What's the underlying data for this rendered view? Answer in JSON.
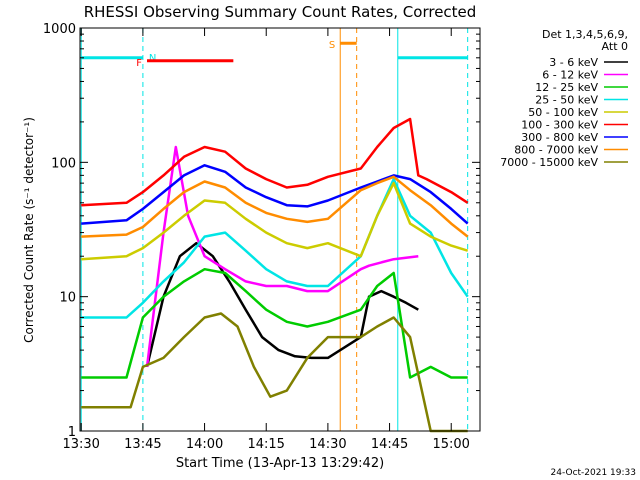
{
  "chart_data": {
    "type": "line",
    "title": "RHESSI Observing Summary Count Rates, Corrected",
    "xlabel": "Start Time (13-Apr-13 13:29:42)",
    "ylabel": "Corrected Count Rate (s⁻¹ detector⁻¹)",
    "yscale": "log",
    "ylim": [
      1,
      1000
    ],
    "xlim": [
      "13:30",
      "15:07"
    ],
    "x_ticks": [
      "13:30",
      "13:45",
      "14:00",
      "14:15",
      "14:30",
      "14:45",
      "15:00"
    ],
    "y_ticks": [
      "1",
      "10",
      "100",
      "1000"
    ],
    "legend_placement": "right",
    "legend_header": [
      "Det 1,3,4,5,6,9,",
      "Att 0"
    ],
    "series": [
      {
        "name": "3 - 6 keV",
        "color": "#000000",
        "x": [
          "13:46",
          "13:50",
          "13:54",
          "13:58",
          "14:02",
          "14:06",
          "14:10",
          "14:14",
          "14:18",
          "14:22",
          "14:26",
          "14:30",
          "14:38",
          "14:40",
          "14:43",
          "14:46",
          "14:49",
          "14:52"
        ],
        "values": [
          3,
          10,
          20,
          25,
          20,
          13,
          8,
          5,
          4,
          3.6,
          3.5,
          3.5,
          5,
          10,
          11,
          10,
          9,
          8
        ]
      },
      {
        "name": "6 - 12 keV",
        "color": "#ff00ff",
        "x": [
          "13:46",
          "13:50",
          "13:53",
          "13:56",
          "14:00",
          "14:05",
          "14:10",
          "14:15",
          "14:20",
          "14:25",
          "14:30",
          "14:38",
          "14:40",
          "14:43",
          "14:46",
          "14:52"
        ],
        "values": [
          3,
          30,
          130,
          40,
          20,
          16,
          13,
          12,
          12,
          11,
          11,
          16,
          17,
          18,
          19,
          20
        ]
      },
      {
        "name": "12 - 25 keV",
        "color": "#00cc00",
        "x": [
          "13:30",
          "13:41",
          "13:45",
          "13:50",
          "13:55",
          "14:00",
          "14:05",
          "14:10",
          "14:15",
          "14:20",
          "14:25",
          "14:30",
          "14:38",
          "14:42",
          "14:46",
          "14:50",
          "14:55",
          "15:00",
          "15:04"
        ],
        "values": [
          2.5,
          2.5,
          7,
          10,
          13,
          16,
          15,
          11,
          8,
          6.5,
          6,
          6.5,
          8,
          12,
          15,
          2.5,
          3,
          2.5,
          2.5
        ]
      },
      {
        "name": "25 - 50 keV",
        "color": "#00e5e5",
        "x": [
          "13:30",
          "13:41",
          "13:45",
          "13:50",
          "13:55",
          "14:00",
          "14:05",
          "14:10",
          "14:15",
          "14:20",
          "14:25",
          "14:30",
          "14:38",
          "14:42",
          "14:46",
          "14:50",
          "14:55",
          "15:00",
          "15:04"
        ],
        "values": [
          7,
          7,
          9,
          13,
          18,
          28,
          30,
          22,
          16,
          13,
          12,
          12,
          20,
          40,
          75,
          40,
          30,
          15,
          10
        ]
      },
      {
        "name": "50 - 100 keV",
        "color": "#cccc00",
        "x": [
          "13:30",
          "13:41",
          "13:45",
          "13:50",
          "13:55",
          "14:00",
          "14:05",
          "14:10",
          "14:15",
          "14:20",
          "14:25",
          "14:30",
          "14:38",
          "14:42",
          "14:46",
          "14:50",
          "14:55",
          "15:00",
          "15:04"
        ],
        "values": [
          19,
          20,
          23,
          30,
          40,
          52,
          50,
          38,
          30,
          25,
          23,
          25,
          20,
          40,
          70,
          35,
          28,
          24,
          22
        ]
      },
      {
        "name": "100 - 300 keV",
        "color": "#ff0000",
        "x": [
          "13:30",
          "13:41",
          "13:45",
          "13:50",
          "13:55",
          "14:00",
          "14:05",
          "14:10",
          "14:15",
          "14:20",
          "14:25",
          "14:30",
          "14:38",
          "14:42",
          "14:46",
          "14:50",
          "14:52",
          "14:54",
          "15:00",
          "15:04"
        ],
        "values": [
          48,
          50,
          60,
          80,
          110,
          130,
          120,
          90,
          75,
          65,
          68,
          78,
          90,
          130,
          180,
          210,
          80,
          75,
          60,
          50
        ]
      },
      {
        "name": "300 - 800 keV",
        "color": "#0000ff",
        "x": [
          "13:30",
          "13:41",
          "13:45",
          "13:50",
          "13:55",
          "14:00",
          "14:05",
          "14:10",
          "14:15",
          "14:20",
          "14:25",
          "14:30",
          "14:38",
          "14:42",
          "14:46",
          "14:50",
          "14:55",
          "15:00",
          "15:04"
        ],
        "values": [
          35,
          37,
          45,
          60,
          80,
          95,
          85,
          65,
          55,
          48,
          47,
          52,
          65,
          72,
          80,
          75,
          60,
          45,
          35
        ]
      },
      {
        "name": "800 - 7000 keV",
        "color": "#ff8c00",
        "x": [
          "13:30",
          "13:41",
          "13:45",
          "13:50",
          "13:55",
          "14:00",
          "14:05",
          "14:10",
          "14:15",
          "14:20",
          "14:25",
          "14:30",
          "14:38",
          "14:42",
          "14:46",
          "14:50",
          "14:55",
          "15:00",
          "15:04"
        ],
        "values": [
          28,
          29,
          33,
          45,
          60,
          72,
          65,
          50,
          42,
          38,
          36,
          38,
          62,
          70,
          78,
          62,
          48,
          35,
          28
        ]
      },
      {
        "name": "7000 - 15000 keV",
        "color": "#808000",
        "x": [
          "13:30",
          "13:42",
          "13:45",
          "13:50",
          "13:55",
          "14:00",
          "14:04",
          "14:08",
          "14:12",
          "14:16",
          "14:20",
          "14:25",
          "14:30",
          "14:38",
          "14:42",
          "14:46",
          "14:50",
          "14:55",
          "15:00",
          "15:04"
        ],
        "values": [
          1.5,
          1.5,
          3,
          3.5,
          5,
          7,
          7.5,
          6,
          3,
          1.8,
          2,
          3.5,
          5,
          5,
          6,
          7,
          5,
          1,
          1,
          1
        ]
      }
    ],
    "annotations": [
      {
        "label": "N",
        "color": "#00e5e5",
        "y": 600,
        "ranges": [
          [
            "13:30",
            "13:45"
          ],
          [
            "14:47",
            "15:04"
          ]
        ]
      },
      {
        "label": "F",
        "color": "#ff0000",
        "y": 570,
        "ranges": [
          [
            "13:46",
            "14:07"
          ]
        ]
      },
      {
        "label": "S",
        "color": "#ff8c00",
        "y": 770,
        "ranges": [
          [
            "14:33",
            "14:37"
          ]
        ]
      }
    ],
    "vlines": [
      {
        "x": "13:30",
        "color": "#00e5e5",
        "style": "solid"
      },
      {
        "x": "13:45",
        "color": "#00e5e5",
        "style": "dashed"
      },
      {
        "x": "14:33",
        "color": "#ff8c00",
        "style": "solid"
      },
      {
        "x": "14:37",
        "color": "#ff8c00",
        "style": "dashed"
      },
      {
        "x": "14:47",
        "color": "#00e5e5",
        "style": "solid"
      },
      {
        "x": "15:04",
        "color": "#00e5e5",
        "style": "dashed"
      }
    ],
    "footer": "24-Oct-2021 19:33"
  }
}
